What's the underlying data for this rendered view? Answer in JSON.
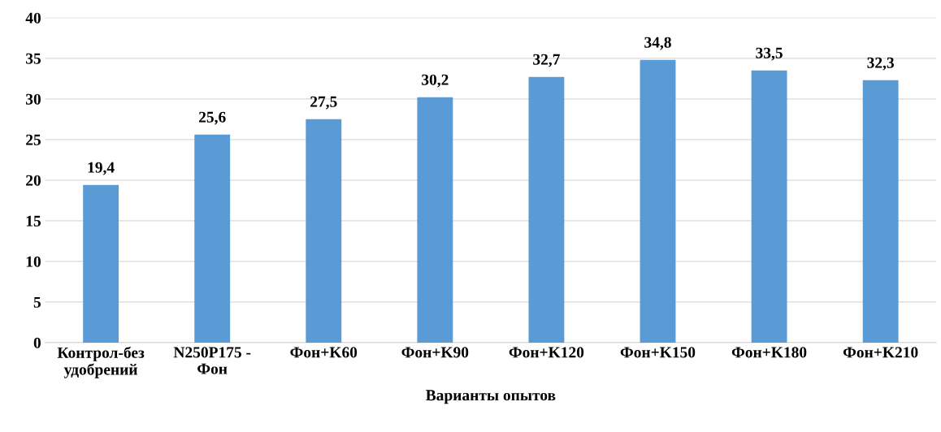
{
  "chart_data": {
    "type": "bar",
    "xlabel": "Варианты опытов",
    "categories": [
      "Контрол-без\nудобрений",
      "N250P175 -\nФон",
      "Фон+K60",
      "Фон+K90",
      "Фон+K120",
      "Фон+K150",
      "Фон+K180",
      "Фон+K210"
    ],
    "values": [
      19.4,
      25.6,
      27.5,
      30.2,
      32.7,
      34.8,
      33.5,
      32.3
    ],
    "value_labels": [
      "19,4",
      "25,6",
      "27,5",
      "30,2",
      "32,7",
      "34,8",
      "33,5",
      "32,3"
    ],
    "color": "#5b9bd5",
    "ylim": [
      0,
      40
    ],
    "yticks": [
      0,
      5,
      10,
      15,
      20,
      25,
      30,
      35,
      40
    ],
    "grid": "y",
    "legend": false
  }
}
